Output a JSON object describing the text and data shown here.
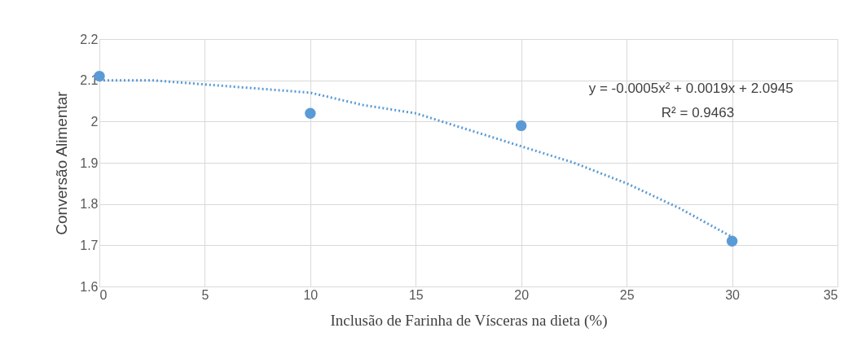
{
  "chart_data": {
    "type": "scatter",
    "xlabel": "Inclusão de Farinha de Vísceras na dieta (%)",
    "ylabel": "Conversão Alimentar",
    "annotations": [
      "y = -0.0005x² + 0.0019x + 2.0945",
      "R² = 0.9463"
    ],
    "xlim": [
      0,
      35
    ],
    "xticks": [
      0,
      5,
      10,
      15,
      20,
      25,
      30,
      35
    ],
    "ylim": [
      1.6,
      2.2
    ],
    "yticks": [
      1.6,
      1.7,
      1.8,
      1.9,
      {
        "value": 2,
        "label": "2"
      },
      2.1,
      2.2
    ],
    "grid": true,
    "marker": "circle",
    "series": [
      {
        "color": "#5b9bd5",
        "x": [
          0,
          10,
          20,
          30
        ],
        "values": [
          2.11,
          2.02,
          1.99,
          1.71
        ]
      },
      {
        "type": "line",
        "color": "#5b9bd5",
        "line_style": "dotted",
        "marker": "none",
        "x": [
          0,
          2.5,
          5,
          7.5,
          10,
          12.5,
          15,
          17.5,
          20,
          22.5,
          25,
          27.5,
          30
        ],
        "values": [
          2.1,
          2.1,
          2.09,
          2.08,
          2.07,
          2.04,
          2.02,
          1.98,
          1.94,
          1.9,
          1.85,
          1.79,
          1.72
        ]
      }
    ]
  }
}
